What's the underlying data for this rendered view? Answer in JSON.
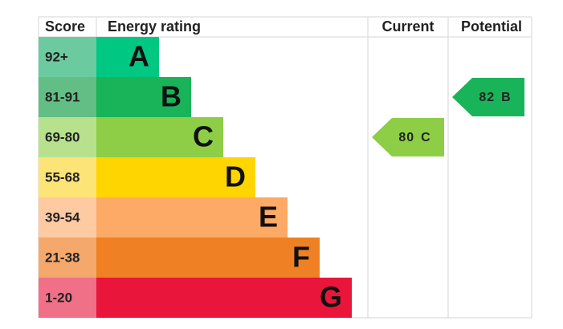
{
  "header": {
    "score": "Score",
    "rating": "Energy rating",
    "current": "Current",
    "potential": "Potential"
  },
  "bands": [
    {
      "score": "92+",
      "letter": "A",
      "color": "#00c781",
      "score_color": "#6ccaa0"
    },
    {
      "score": "81-91",
      "letter": "B",
      "color": "#19b459",
      "score_color": "#62be84"
    },
    {
      "score": "69-80",
      "letter": "C",
      "color": "#8dce46",
      "score_color": "#b7e18d"
    },
    {
      "score": "55-68",
      "letter": "D",
      "color": "#ffd500",
      "score_color": "#fce476"
    },
    {
      "score": "39-54",
      "letter": "E",
      "color": "#fcaa65",
      "score_color": "#fdcaa2"
    },
    {
      "score": "21-38",
      "letter": "F",
      "color": "#ef8023",
      "score_color": "#f4a86b"
    },
    {
      "score": "1-20",
      "letter": "G",
      "color": "#e9153b",
      "score_color": "#f07088"
    }
  ],
  "current": {
    "value": 80,
    "letter": "C"
  },
  "potential": {
    "value": 82,
    "letter": "B"
  }
}
